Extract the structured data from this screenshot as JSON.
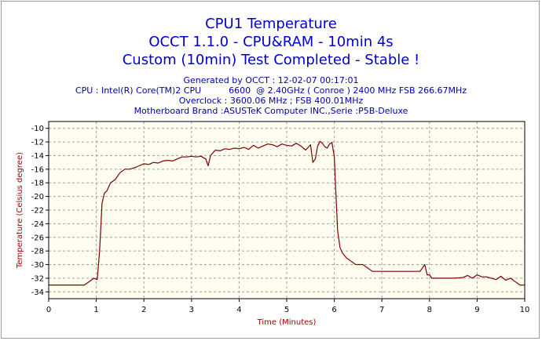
{
  "titles": [
    "CPU1 Temperature",
    "OCCT 1.1.0 - CPU&RAM - 10min 4s",
    "Custom (10min) Test Completed - Stable !"
  ],
  "info": [
    "Generated by OCCT : 12-02-07 00:17:01",
    "CPU : Intel(R) Core(TM)2 CPU          6600  @ 2.40GHz ( Conroe ) 2400 MHz FSB 266.67MHz",
    "Overclock : 3600.06 MHz ; FSB 400.01MHz",
    "Motherboard Brand :ASUSTeK Computer INC.,Serie :P5B-Deluxe"
  ],
  "colors": {
    "title": "#0000cc",
    "info": "#0000aa",
    "plot_bg": "#fffcf0",
    "grid": "#a0a0a0",
    "line": "#800000",
    "axis_title": "#a00000"
  },
  "chart_data": {
    "type": "line",
    "xlabel": "Time (Minutes)",
    "ylabel": "Temperature (Celsius degree)",
    "xlim": [
      0,
      10
    ],
    "ylim": [
      -35,
      -9
    ],
    "xticks": [
      0,
      1,
      2,
      3,
      4,
      5,
      6,
      7,
      8,
      9,
      10
    ],
    "yticks": [
      -10,
      -12,
      -14,
      -16,
      -18,
      -20,
      -22,
      -24,
      -26,
      -28,
      -30,
      -32,
      -34
    ],
    "grid": true,
    "series": [
      {
        "name": "",
        "x": [
          0,
          0.75,
          0.85,
          0.95,
          1.02,
          1.07,
          1.12,
          1.17,
          1.22,
          1.3,
          1.4,
          1.5,
          1.6,
          1.7,
          1.8,
          1.9,
          2.0,
          2.1,
          2.2,
          2.3,
          2.4,
          2.5,
          2.6,
          2.7,
          2.8,
          2.9,
          3.0,
          3.1,
          3.2,
          3.3,
          3.35,
          3.4,
          3.5,
          3.6,
          3.7,
          3.8,
          3.9,
          4.0,
          4.1,
          4.2,
          4.3,
          4.4,
          4.5,
          4.6,
          4.7,
          4.8,
          4.9,
          5.0,
          5.1,
          5.2,
          5.3,
          5.4,
          5.5,
          5.55,
          5.6,
          5.65,
          5.7,
          5.75,
          5.8,
          5.85,
          5.9,
          5.95,
          6.0,
          6.03,
          6.07,
          6.12,
          6.17,
          6.25,
          6.35,
          6.45,
          6.6,
          6.8,
          7.0,
          7.2,
          7.4,
          7.6,
          7.8,
          7.85,
          7.9,
          7.95,
          8.0,
          8.05,
          8.1,
          8.3,
          8.5,
          8.7,
          8.8,
          8.9,
          9.0,
          9.1,
          9.2,
          9.3,
          9.4,
          9.5,
          9.6,
          9.7,
          9.8,
          9.9,
          10.0
        ],
        "values": [
          -33,
          -33,
          -32.5,
          -32,
          -32.2,
          -28,
          -21,
          -19.5,
          -19.2,
          -18,
          -17.5,
          -16.5,
          -16,
          -16,
          -15.8,
          -15.5,
          -15.2,
          -15.3,
          -15,
          -15.1,
          -14.8,
          -14.7,
          -14.8,
          -14.5,
          -14.2,
          -14.2,
          -14.1,
          -14.2,
          -14.1,
          -14.5,
          -15.5,
          -14,
          -13.2,
          -13.3,
          -13,
          -13.1,
          -12.9,
          -13,
          -12.8,
          -13.1,
          -12.5,
          -12.9,
          -12.6,
          -12.3,
          -12.4,
          -12.7,
          -12.3,
          -12.5,
          -12.6,
          -12.2,
          -12.6,
          -13.2,
          -12.4,
          -15,
          -14.5,
          -12.6,
          -11.9,
          -12.2,
          -12.7,
          -12.9,
          -12.3,
          -12.1,
          -14.2,
          -19,
          -25,
          -27.5,
          -28.3,
          -29,
          -29.5,
          -30,
          -30,
          -31,
          -31,
          -31,
          -31,
          -31,
          -31,
          -30.5,
          -30,
          -31.5,
          -31.5,
          -32,
          -32,
          -32,
          -32,
          -31.9,
          -31.6,
          -32,
          -31.5,
          -31.8,
          -31.8,
          -32,
          -32.2,
          -31.7,
          -32.3,
          -32,
          -32.5,
          -33,
          -33
        ]
      }
    ]
  }
}
